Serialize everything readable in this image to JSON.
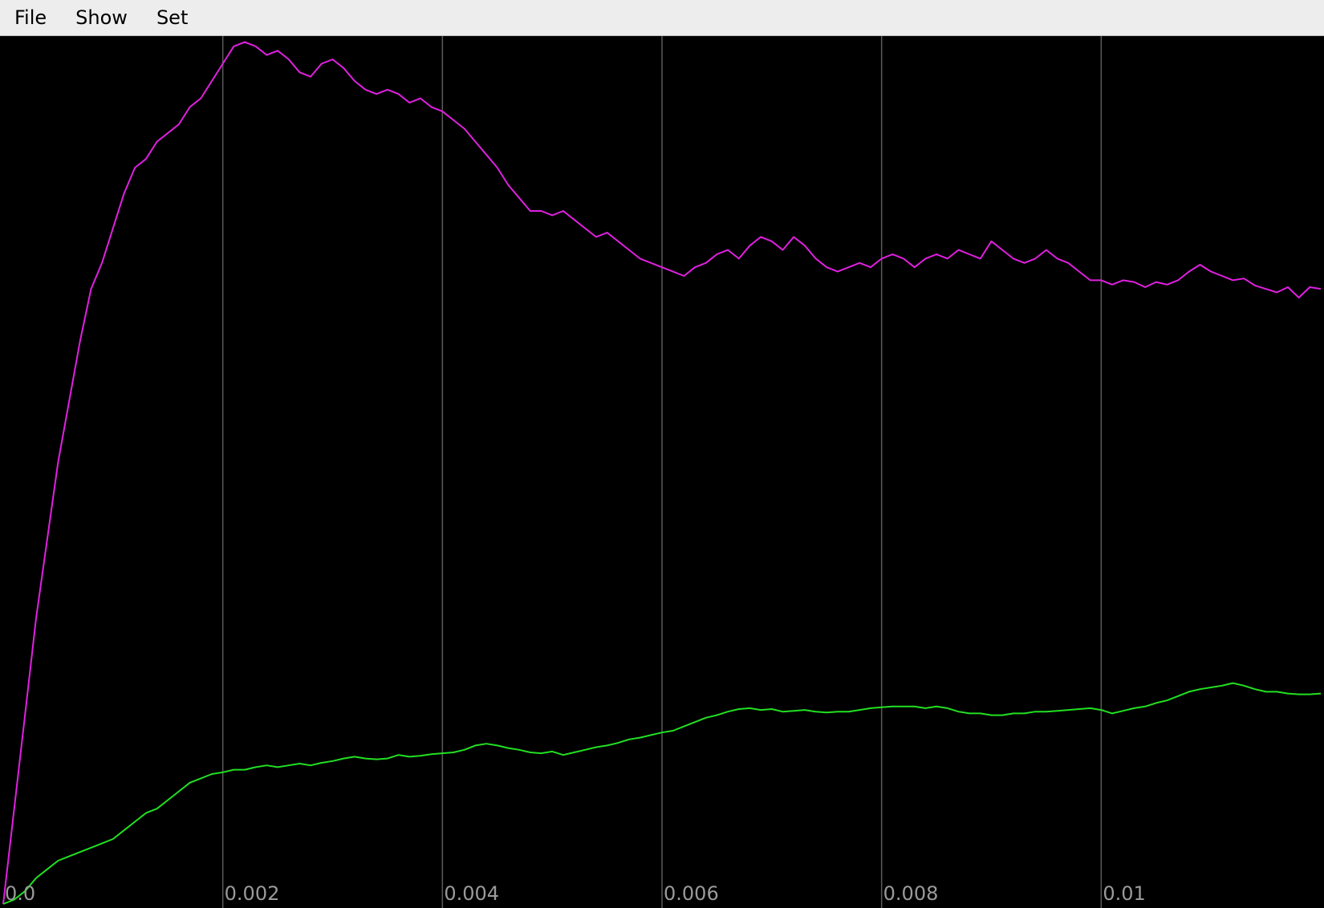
{
  "menu": {
    "items": [
      "File",
      "Show",
      "Set"
    ]
  },
  "colors": {
    "plot_background": "#000000",
    "grid": "#5a5a5a",
    "tick_text": "#9a9a9a",
    "series_1": "#e020e0",
    "series_2": "#22e022",
    "menubar": "#ededed"
  },
  "chart_data": {
    "type": "line",
    "title": "",
    "xlabel": "",
    "ylabel": "",
    "xlim": [
      0,
      0.012
    ],
    "ylim": [
      0,
      1
    ],
    "x_ticks": [
      {
        "value": 0.0,
        "label": "0.0"
      },
      {
        "value": 0.002,
        "label": "0.002"
      },
      {
        "value": 0.004,
        "label": "0.004"
      },
      {
        "value": 0.006,
        "label": "0.006"
      },
      {
        "value": 0.008,
        "label": "0.008"
      },
      {
        "value": 0.01,
        "label": "0.01"
      }
    ],
    "grid": "vertical",
    "series": [
      {
        "color": "#e020e0",
        "x": [
          0,
          0.0001,
          0.0002,
          0.0003,
          0.0004,
          0.0005,
          0.0006,
          0.0007,
          0.0008,
          0.0009,
          0.001,
          0.0011,
          0.0012,
          0.0013,
          0.0014,
          0.0015,
          0.0016,
          0.0017,
          0.0018,
          0.0019,
          0.002,
          0.0021,
          0.0022,
          0.0023,
          0.0024,
          0.0025,
          0.0026,
          0.0027,
          0.0028,
          0.0029,
          0.003,
          0.0031,
          0.0032,
          0.0033,
          0.0034,
          0.0035,
          0.0036,
          0.0037,
          0.0038,
          0.0039,
          0.004,
          0.0041,
          0.0042,
          0.0043,
          0.0044,
          0.0045,
          0.0046,
          0.0047,
          0.0048,
          0.0049,
          0.005,
          0.0051,
          0.0052,
          0.0053,
          0.0054,
          0.0055,
          0.0056,
          0.0057,
          0.0058,
          0.0059,
          0.006,
          0.0061,
          0.0062,
          0.0063,
          0.0064,
          0.0065,
          0.0066,
          0.0067,
          0.0068,
          0.0069,
          0.007,
          0.0071,
          0.0072,
          0.0073,
          0.0074,
          0.0075,
          0.0076,
          0.0077,
          0.0078,
          0.0079,
          0.008,
          0.0081,
          0.0082,
          0.0083,
          0.0084,
          0.0085,
          0.0086,
          0.0087,
          0.0088,
          0.0089,
          0.009,
          0.0091,
          0.0092,
          0.0093,
          0.0094,
          0.0095,
          0.0096,
          0.0097,
          0.0098,
          0.0099,
          0.01,
          0.0101,
          0.0102,
          0.0103,
          0.0104,
          0.0105,
          0.0106,
          0.0107,
          0.0108,
          0.0109,
          0.011,
          0.0111,
          0.0112,
          0.0113,
          0.0114,
          0.0115,
          0.0116,
          0.0117,
          0.0118,
          0.0119,
          0.012
        ],
        "y": [
          0.0,
          0.11,
          0.22,
          0.33,
          0.42,
          0.51,
          0.58,
          0.65,
          0.71,
          0.74,
          0.78,
          0.82,
          0.85,
          0.86,
          0.88,
          0.89,
          0.9,
          0.92,
          0.93,
          0.95,
          0.97,
          0.99,
          0.995,
          0.99,
          0.98,
          0.985,
          0.975,
          0.96,
          0.955,
          0.97,
          0.975,
          0.965,
          0.95,
          0.94,
          0.935,
          0.94,
          0.935,
          0.925,
          0.93,
          0.92,
          0.915,
          0.905,
          0.895,
          0.88,
          0.865,
          0.85,
          0.83,
          0.815,
          0.8,
          0.8,
          0.795,
          0.8,
          0.79,
          0.78,
          0.77,
          0.775,
          0.765,
          0.755,
          0.745,
          0.74,
          0.735,
          0.73,
          0.725,
          0.735,
          0.74,
          0.75,
          0.755,
          0.745,
          0.76,
          0.77,
          0.765,
          0.755,
          0.77,
          0.76,
          0.745,
          0.735,
          0.73,
          0.735,
          0.74,
          0.735,
          0.745,
          0.75,
          0.745,
          0.735,
          0.745,
          0.75,
          0.745,
          0.755,
          0.75,
          0.745,
          0.765,
          0.755,
          0.745,
          0.74,
          0.745,
          0.755,
          0.745,
          0.74,
          0.73,
          0.72,
          0.72,
          0.715,
          0.72,
          0.718,
          0.712,
          0.718,
          0.715,
          0.72,
          0.73,
          0.738,
          0.73,
          0.725,
          0.72,
          0.722,
          0.714,
          0.71,
          0.706,
          0.712,
          0.7,
          0.712,
          0.71
        ]
      },
      {
        "color": "#22e022",
        "x": [
          0,
          0.0001,
          0.0002,
          0.0003,
          0.0004,
          0.0005,
          0.0006,
          0.0007,
          0.0008,
          0.0009,
          0.001,
          0.0011,
          0.0012,
          0.0013,
          0.0014,
          0.0015,
          0.0016,
          0.0017,
          0.0018,
          0.0019,
          0.002,
          0.0021,
          0.0022,
          0.0023,
          0.0024,
          0.0025,
          0.0026,
          0.0027,
          0.0028,
          0.0029,
          0.003,
          0.0031,
          0.0032,
          0.0033,
          0.0034,
          0.0035,
          0.0036,
          0.0037,
          0.0038,
          0.0039,
          0.004,
          0.0041,
          0.0042,
          0.0043,
          0.0044,
          0.0045,
          0.0046,
          0.0047,
          0.0048,
          0.0049,
          0.005,
          0.0051,
          0.0052,
          0.0053,
          0.0054,
          0.0055,
          0.0056,
          0.0057,
          0.0058,
          0.0059,
          0.006,
          0.0061,
          0.0062,
          0.0063,
          0.0064,
          0.0065,
          0.0066,
          0.0067,
          0.0068,
          0.0069,
          0.007,
          0.0071,
          0.0072,
          0.0073,
          0.0074,
          0.0075,
          0.0076,
          0.0077,
          0.0078,
          0.0079,
          0.008,
          0.0081,
          0.0082,
          0.0083,
          0.0084,
          0.0085,
          0.0086,
          0.0087,
          0.0088,
          0.0089,
          0.009,
          0.0091,
          0.0092,
          0.0093,
          0.0094,
          0.0095,
          0.0096,
          0.0097,
          0.0098,
          0.0099,
          0.01,
          0.0101,
          0.0102,
          0.0103,
          0.0104,
          0.0105,
          0.0106,
          0.0107,
          0.0108,
          0.0109,
          0.011,
          0.0111,
          0.0112,
          0.0113,
          0.0114,
          0.0115,
          0.0116,
          0.0117,
          0.0118,
          0.0119,
          0.012
        ],
        "y": [
          0.0,
          0.005,
          0.015,
          0.03,
          0.04,
          0.05,
          0.055,
          0.06,
          0.065,
          0.07,
          0.075,
          0.085,
          0.095,
          0.105,
          0.11,
          0.12,
          0.13,
          0.14,
          0.145,
          0.15,
          0.152,
          0.155,
          0.155,
          0.158,
          0.16,
          0.158,
          0.16,
          0.162,
          0.16,
          0.163,
          0.165,
          0.168,
          0.17,
          0.168,
          0.167,
          0.168,
          0.172,
          0.17,
          0.171,
          0.173,
          0.174,
          0.175,
          0.178,
          0.183,
          0.185,
          0.183,
          0.18,
          0.178,
          0.175,
          0.174,
          0.176,
          0.172,
          0.175,
          0.178,
          0.181,
          0.183,
          0.186,
          0.19,
          0.192,
          0.195,
          0.198,
          0.2,
          0.205,
          0.21,
          0.215,
          0.218,
          0.222,
          0.225,
          0.226,
          0.224,
          0.225,
          0.222,
          0.223,
          0.224,
          0.222,
          0.221,
          0.222,
          0.222,
          0.224,
          0.226,
          0.227,
          0.228,
          0.228,
          0.228,
          0.226,
          0.228,
          0.226,
          0.222,
          0.22,
          0.22,
          0.218,
          0.218,
          0.22,
          0.22,
          0.222,
          0.222,
          0.223,
          0.224,
          0.225,
          0.226,
          0.224,
          0.22,
          0.223,
          0.226,
          0.228,
          0.232,
          0.235,
          0.24,
          0.245,
          0.248,
          0.25,
          0.252,
          0.255,
          0.252,
          0.248,
          0.245,
          0.245,
          0.243,
          0.242,
          0.242,
          0.243
        ]
      }
    ]
  }
}
